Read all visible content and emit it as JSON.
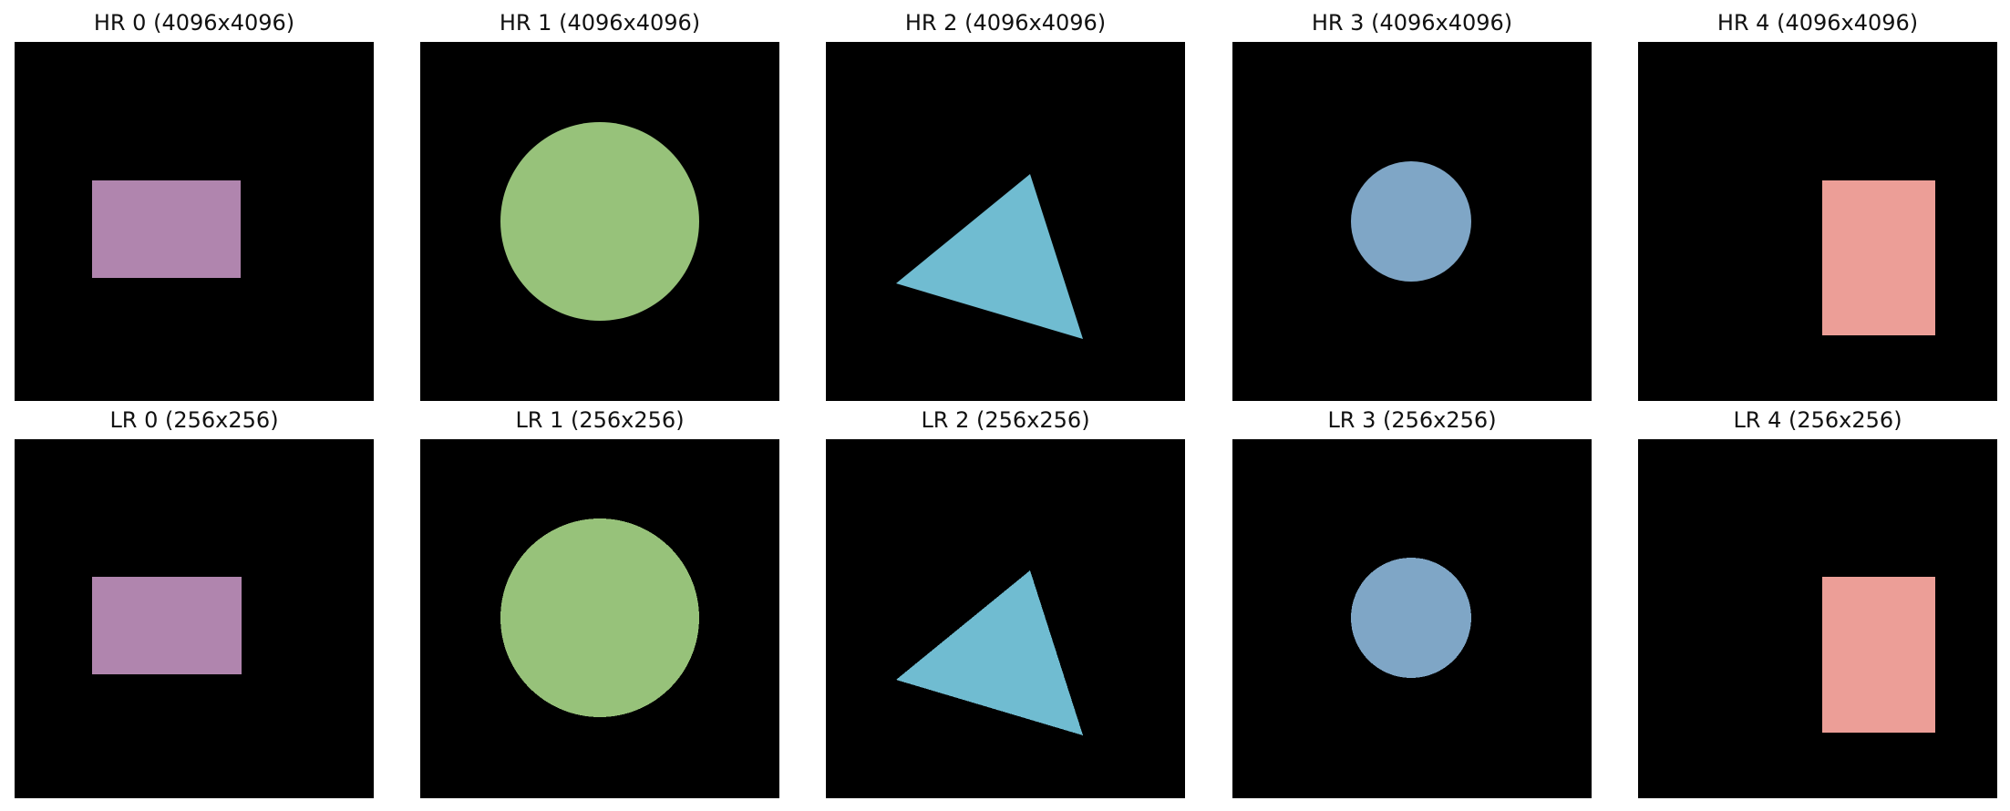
{
  "rows": [
    {
      "row_id": "hr",
      "panels": [
        {
          "title": "HR 0 (4096x4096)",
          "shape": "rectangle",
          "color": "#b085ae"
        },
        {
          "title": "HR 1 (4096x4096)",
          "shape": "circle",
          "color": "#97c27a"
        },
        {
          "title": "HR 2 (4096x4096)",
          "shape": "triangle",
          "color": "#70bcd1"
        },
        {
          "title": "HR 3 (4096x4096)",
          "shape": "circle",
          "color": "#7fa6c6"
        },
        {
          "title": "HR 4 (4096x4096)",
          "shape": "rectangle",
          "color": "#ec9e97"
        }
      ]
    },
    {
      "row_id": "lr",
      "panels": [
        {
          "title": "LR 0 (256x256)",
          "shape": "rectangle",
          "color": "#b085ae"
        },
        {
          "title": "LR 1 (256x256)",
          "shape": "circle",
          "color": "#97c27a"
        },
        {
          "title": "LR 2 (256x256)",
          "shape": "triangle",
          "color": "#70bcd1"
        },
        {
          "title": "LR 3 (256x256)",
          "shape": "circle",
          "color": "#7fa6c6"
        },
        {
          "title": "LR 4 (256x256)",
          "shape": "rectangle",
          "color": "#ec9e97"
        }
      ]
    }
  ]
}
